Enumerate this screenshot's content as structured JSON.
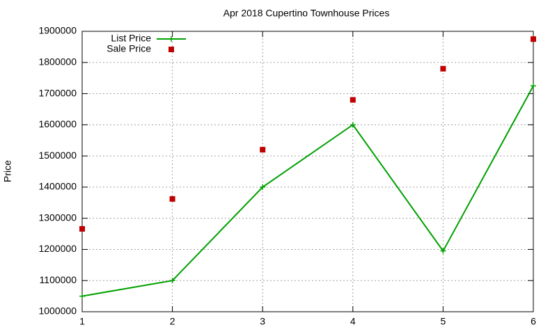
{
  "chart_data": {
    "type": "line",
    "title": "Apr 2018 Cupertino Townhouse Prices",
    "y_label": "Price",
    "x": [
      1,
      2,
      3,
      4,
      5,
      6
    ],
    "series": [
      {
        "name": "List Price",
        "color": "#00a000",
        "mode": "linespoints",
        "values": [
          1050000,
          1100000,
          1400000,
          1600000,
          1195000,
          1725000
        ]
      },
      {
        "name": "Sale Price",
        "color": "#c00000",
        "mode": "points",
        "values": [
          1266000,
          1362000,
          1520000,
          1680000,
          1780000,
          1875000
        ]
      }
    ],
    "xlim": [
      1,
      6
    ],
    "xticks": [
      1,
      2,
      3,
      4,
      5,
      6
    ],
    "ylim": [
      1000000,
      1900000
    ],
    "yticks": [
      1000000,
      1100000,
      1200000,
      1300000,
      1400000,
      1500000,
      1600000,
      1700000,
      1800000,
      1900000
    ],
    "grid": true,
    "legend": "top-left"
  }
}
